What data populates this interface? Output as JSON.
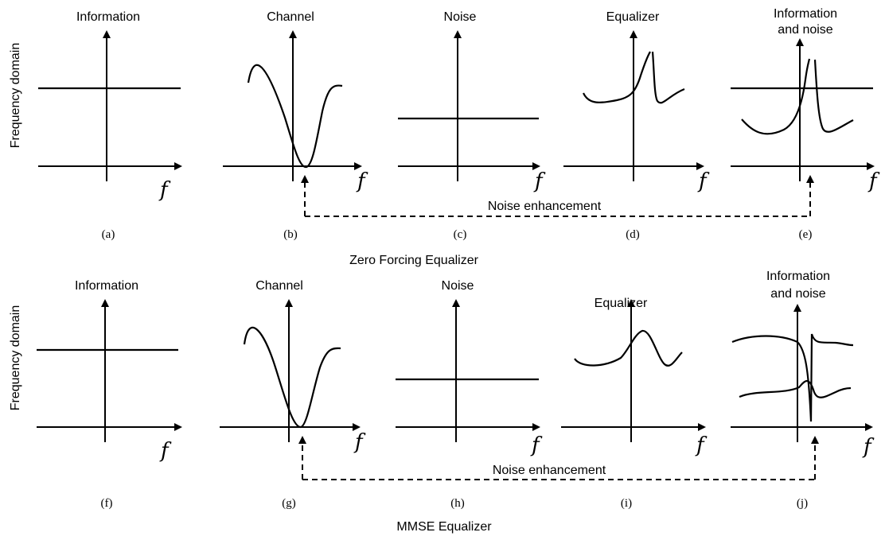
{
  "y_axis_label": "Frequency domain",
  "freq_var": "f",
  "rows": [
    {
      "caption": "Zero Forcing Equalizer",
      "enhancement_label": "Noise enhancement",
      "panels": [
        {
          "title": "Information",
          "title2": "",
          "sub": "(a)"
        },
        {
          "title": "Channel",
          "title2": "",
          "sub": "(b)"
        },
        {
          "title": "Noise",
          "title2": "",
          "sub": "(c)"
        },
        {
          "title": "Equalizer",
          "title2": "",
          "sub": "(d)"
        },
        {
          "title": "Information",
          "title2": "and noise",
          "sub": "(e)"
        }
      ]
    },
    {
      "caption": "MMSE Equalizer",
      "enhancement_label": "Noise enhancement",
      "panels": [
        {
          "title": "Information",
          "title2": "",
          "sub": "(f)"
        },
        {
          "title": "Channel",
          "title2": "",
          "sub": "(g)"
        },
        {
          "title": "Noise",
          "title2": "",
          "sub": "(h)"
        },
        {
          "title": "Equalizer",
          "title2": "",
          "sub": "(i)"
        },
        {
          "title": "Information",
          "title2": "and noise",
          "sub": "(j)"
        }
      ]
    }
  ]
}
